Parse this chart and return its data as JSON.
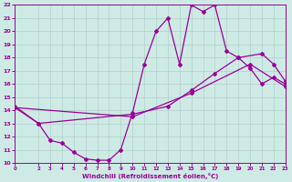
{
  "xlabel": "Windchill (Refroidissement éolien,°C)",
  "background_color": "#ceeae4",
  "line_color": "#990099",
  "grid_color": "#b0d0cc",
  "xlim": [
    0,
    23
  ],
  "ylim": [
    10,
    22
  ],
  "xticks": [
    0,
    2,
    3,
    4,
    5,
    6,
    7,
    8,
    9,
    10,
    11,
    12,
    13,
    14,
    15,
    16,
    17,
    18,
    19,
    20,
    21,
    22,
    23
  ],
  "yticks": [
    10,
    11,
    12,
    13,
    14,
    15,
    16,
    17,
    18,
    19,
    20,
    21,
    22
  ],
  "curve1_x": [
    0,
    2,
    3,
    4,
    5,
    6,
    7,
    8,
    9,
    10,
    11,
    12,
    13,
    14,
    15,
    16,
    17,
    18,
    19,
    20,
    21,
    22,
    23
  ],
  "curve1_y": [
    14.3,
    13.0,
    11.7,
    11.5,
    10.8,
    10.3,
    10.2,
    10.2,
    11.0,
    13.8,
    17.5,
    20.0,
    21.0,
    17.5,
    22.0,
    21.5,
    22.0,
    18.5,
    18.0,
    17.2,
    16.0,
    16.5,
    16.0
  ],
  "curve2_x": [
    0,
    2,
    10,
    13,
    15,
    17,
    19,
    21,
    22,
    23
  ],
  "curve2_y": [
    14.2,
    13.0,
    13.7,
    14.3,
    15.5,
    16.8,
    18.0,
    18.3,
    17.5,
    16.2
  ],
  "curve3_x": [
    0,
    10,
    15,
    20,
    23
  ],
  "curve3_y": [
    14.2,
    13.5,
    15.3,
    17.5,
    15.8
  ]
}
